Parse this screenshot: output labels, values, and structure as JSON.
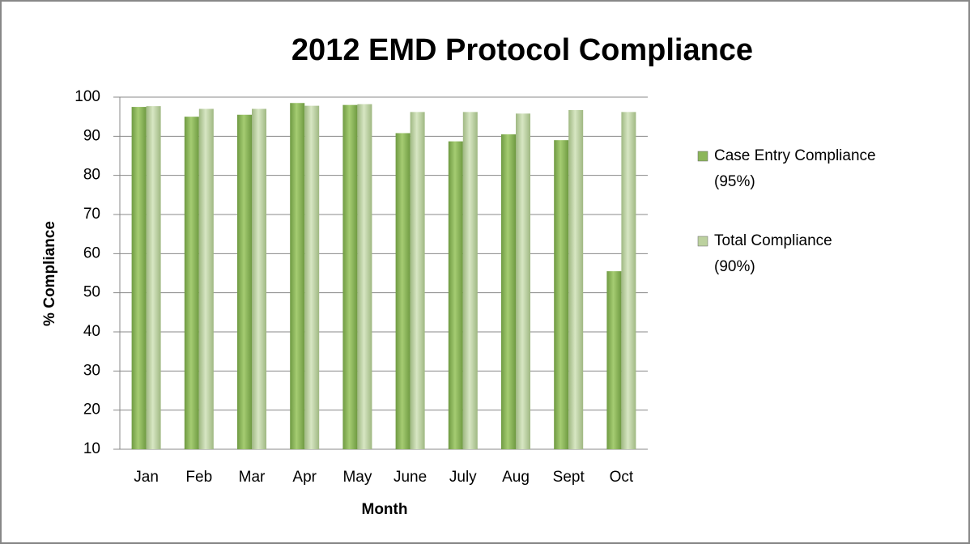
{
  "chart_data": {
    "type": "bar",
    "title": "2012 EMD Protocol Compliance",
    "x_label": "Month",
    "y_label": "% Compliance",
    "categories": [
      "Jan",
      "Feb",
      "Mar",
      "Apr",
      "May",
      "June",
      "July",
      "Aug",
      "Sept",
      "Oct"
    ],
    "series": [
      {
        "name": "Case Entry Compliance (95%)",
        "color": "#8cb65a",
        "values": [
          97.5,
          95,
          95.5,
          98.5,
          98,
          90.8,
          88.7,
          90.5,
          89,
          55.5
        ]
      },
      {
        "name": "Total Compliance (90%)",
        "color": "#bcd19f",
        "values": [
          97.7,
          97,
          97,
          97.8,
          98.2,
          96.2,
          96.2,
          95.8,
          96.7,
          96.2
        ]
      }
    ],
    "ylim": [
      10,
      100
    ],
    "yticks": [
      10,
      20,
      30,
      40,
      50,
      60,
      70,
      80,
      90,
      100
    ],
    "grid": true
  }
}
